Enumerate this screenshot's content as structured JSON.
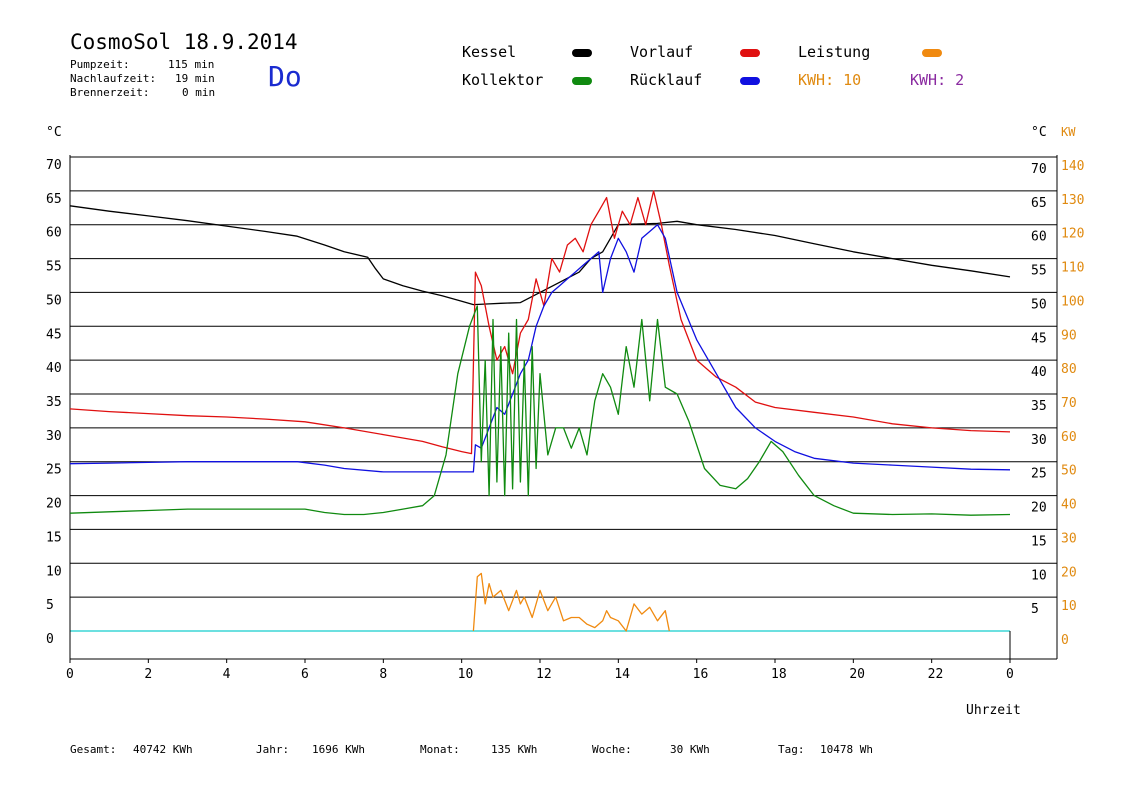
{
  "header": {
    "title": "CosmoSol 18.9.2014",
    "pumpzeit_label": "Pumpzeit:",
    "pumpzeit_value": "115 min",
    "nachlaufzeit_label": "Nachlaufzeit:",
    "nachlaufzeit_value": "19 min",
    "brennerzeit_label": "Brennerzeit:",
    "brennerzeit_value": "0 min",
    "day": "Do"
  },
  "legend": {
    "kessel": {
      "label": "Kessel",
      "color": "#000000"
    },
    "vorlauf": {
      "label": "Vorlauf",
      "color": "#e01010"
    },
    "leistung": {
      "label": "Leistung",
      "color": "#f08a10"
    },
    "kollektor": {
      "label": "Kollektor",
      "color": "#108a10"
    },
    "ruecklauf": {
      "label": "Rücklauf",
      "color": "#1010e0"
    },
    "kwh1": {
      "label": "KWH: 10",
      "color": "#e08a10"
    },
    "kwh2": {
      "label": "KWH: 2",
      "color": "#8a2aa0"
    }
  },
  "axes": {
    "left_unit": "°C",
    "right_unit_c": "°C",
    "right_unit_kw": "KW",
    "xlabel": "Uhrzeit"
  },
  "footer": {
    "gesamt_label": "Gesamt:",
    "gesamt_value": "40742 KWh",
    "jahr_label": "Jahr:",
    "jahr_value": "1696 KWh",
    "monat_label": "Monat:",
    "monat_value": "135 KWh",
    "woche_label": "Woche:",
    "woche_value": "30 KWh",
    "tag_label": "Tag:",
    "tag_value": "10478 Wh"
  },
  "chart_data": {
    "type": "line",
    "xlabel": "Uhrzeit",
    "ylabel": "°C",
    "xlim": [
      0,
      24
    ],
    "ylim": [
      0,
      70
    ],
    "y2lim": [
      0,
      140
    ],
    "x_ticks": [
      "0",
      "2",
      "4",
      "6",
      "8",
      "10",
      "12",
      "14",
      "16",
      "18",
      "20",
      "22",
      "0"
    ],
    "y_ticks_left": [
      "0",
      "5",
      "10",
      "15",
      "20",
      "25",
      "30",
      "35",
      "40",
      "45",
      "50",
      "55",
      "60",
      "65",
      "70"
    ],
    "y_ticks_right_c": [
      "5",
      "10",
      "15",
      "20",
      "25",
      "30",
      "35",
      "40",
      "45",
      "50",
      "55",
      "60",
      "65",
      "70"
    ],
    "y_ticks_right_kw": [
      "0",
      "10",
      "20",
      "30",
      "40",
      "50",
      "60",
      "70",
      "80",
      "90",
      "100",
      "110",
      "120",
      "130",
      "140"
    ],
    "grid": true,
    "series": [
      {
        "name": "Kessel",
        "color": "#000000",
        "x": [
          0,
          1,
          2,
          3,
          4,
          5,
          5.8,
          6.5,
          7,
          7.6,
          7.8,
          8,
          8.5,
          9,
          9.5,
          10,
          10.3,
          10.7,
          11,
          11.5,
          12,
          12.5,
          13,
          13.3,
          13.6,
          13.8,
          14,
          14.5,
          15,
          15.5,
          16,
          17,
          18,
          19,
          20,
          21,
          22,
          23,
          24
        ],
        "y": [
          62.8,
          62,
          61.3,
          60.6,
          59.8,
          59,
          58.3,
          57,
          56,
          55.2,
          53.5,
          52,
          51,
          50.2,
          49.5,
          48.7,
          48.2,
          48.3,
          48.4,
          48.5,
          50,
          51.5,
          53,
          55,
          56,
          58,
          60,
          60.1,
          60.2,
          60.5,
          60,
          59.3,
          58.4,
          57.2,
          56,
          55,
          54,
          53.2,
          52.3
        ]
      },
      {
        "name": "Vorlauf",
        "color": "#e01010",
        "x": [
          0,
          1,
          2,
          3,
          4,
          5,
          6,
          7,
          8,
          9,
          9.5,
          10,
          10.25,
          10.35,
          10.5,
          10.7,
          10.9,
          11.1,
          11.3,
          11.5,
          11.7,
          11.9,
          12.1,
          12.3,
          12.5,
          12.7,
          12.9,
          13.1,
          13.3,
          13.5,
          13.7,
          13.9,
          14.1,
          14.3,
          14.5,
          14.7,
          14.9,
          15.1,
          15.3,
          15.6,
          16,
          16.5,
          17,
          17.5,
          18,
          19,
          20,
          21,
          22,
          23,
          24
        ],
        "y": [
          32.8,
          32.4,
          32.1,
          31.8,
          31.6,
          31.3,
          30.9,
          30,
          29,
          28,
          27.2,
          26.5,
          26.2,
          53,
          51,
          45,
          40,
          42,
          38,
          44,
          46,
          52,
          48,
          55,
          53,
          57,
          58,
          56,
          60,
          62,
          64,
          58,
          62,
          60,
          64,
          60,
          65,
          60,
          54,
          46,
          40,
          37.5,
          36,
          33.8,
          33,
          32.3,
          31.6,
          30.6,
          30,
          29.6,
          29.4
        ]
      },
      {
        "name": "Rücklauf",
        "color": "#1010e0",
        "x": [
          0,
          1,
          2,
          3,
          4,
          5,
          5.8,
          6.5,
          7,
          8,
          9,
          10,
          10.3,
          10.35,
          10.5,
          10.7,
          10.9,
          11.1,
          11.3,
          11.5,
          11.7,
          11.9,
          12.1,
          12.3,
          12.5,
          12.7,
          12.9,
          13.1,
          13.3,
          13.5,
          13.6,
          13.8,
          14,
          14.2,
          14.4,
          14.6,
          14.8,
          15,
          15.2,
          15.5,
          16,
          16.5,
          17,
          17.5,
          18,
          18.5,
          19,
          20,
          21,
          22,
          23,
          24
        ],
        "y": [
          24.7,
          24.8,
          24.9,
          25,
          25,
          25,
          25,
          24.5,
          24,
          23.5,
          23.5,
          23.5,
          23.5,
          27.5,
          27,
          30,
          33,
          32,
          35,
          38,
          40,
          45,
          48,
          50,
          51,
          52,
          53,
          54,
          55,
          56,
          50,
          55,
          58,
          56,
          53,
          58,
          59,
          60,
          58,
          50,
          43,
          38,
          33,
          30,
          28,
          26.5,
          25.5,
          24.8,
          24.5,
          24.2,
          23.9,
          23.8
        ]
      },
      {
        "name": "Kollektor",
        "color": "#108a10",
        "x": [
          0,
          1,
          2,
          3,
          4,
          5,
          6,
          6.5,
          7,
          7.5,
          8,
          8.5,
          9,
          9.3,
          9.6,
          9.9,
          10.2,
          10.4,
          10.5,
          10.6,
          10.7,
          10.8,
          10.9,
          11,
          11.1,
          11.2,
          11.3,
          11.4,
          11.5,
          11.6,
          11.7,
          11.8,
          11.9,
          12,
          12.2,
          12.4,
          12.6,
          12.8,
          13,
          13.2,
          13.4,
          13.6,
          13.8,
          14,
          14.2,
          14.4,
          14.6,
          14.8,
          15,
          15.2,
          15.5,
          15.8,
          16.2,
          16.6,
          17,
          17.3,
          17.6,
          17.9,
          18.2,
          18.6,
          19,
          19.5,
          20,
          21,
          22,
          23,
          24
        ],
        "y": [
          17.4,
          17.6,
          17.8,
          18,
          18,
          18,
          18,
          17.5,
          17.2,
          17.2,
          17.5,
          18,
          18.5,
          20,
          26,
          38,
          45,
          48,
          25,
          40,
          20,
          46,
          22,
          42,
          20,
          44,
          21,
          46,
          22,
          40,
          20,
          42,
          24,
          38,
          26,
          30,
          30,
          27,
          30,
          26,
          34,
          38,
          36,
          32,
          42,
          36,
          46,
          34,
          46,
          36,
          35,
          31,
          24,
          21.5,
          21,
          22.5,
          25,
          28,
          26.5,
          23,
          20,
          18.5,
          17.4,
          17.2,
          17.3,
          17.1,
          17.2
        ]
      },
      {
        "name": "Leistung",
        "color": "#f08a10",
        "axis": "KW",
        "x": [
          10.3,
          10.4,
          10.5,
          10.6,
          10.7,
          10.8,
          11,
          11.2,
          11.4,
          11.5,
          11.6,
          11.8,
          12,
          12.2,
          12.4,
          12.6,
          12.8,
          13,
          13.2,
          13.4,
          13.6,
          13.7,
          13.8,
          14,
          14.2,
          14.4,
          14.6,
          14.8,
          15,
          15.2,
          15.3
        ],
        "y": [
          0,
          16,
          17,
          8,
          14,
          10,
          12,
          6,
          12,
          8,
          10,
          4,
          12,
          6,
          10,
          3,
          4,
          4,
          2,
          1,
          3,
          6,
          4,
          3,
          0,
          8,
          5,
          7,
          3,
          6,
          0
        ]
      }
    ]
  }
}
